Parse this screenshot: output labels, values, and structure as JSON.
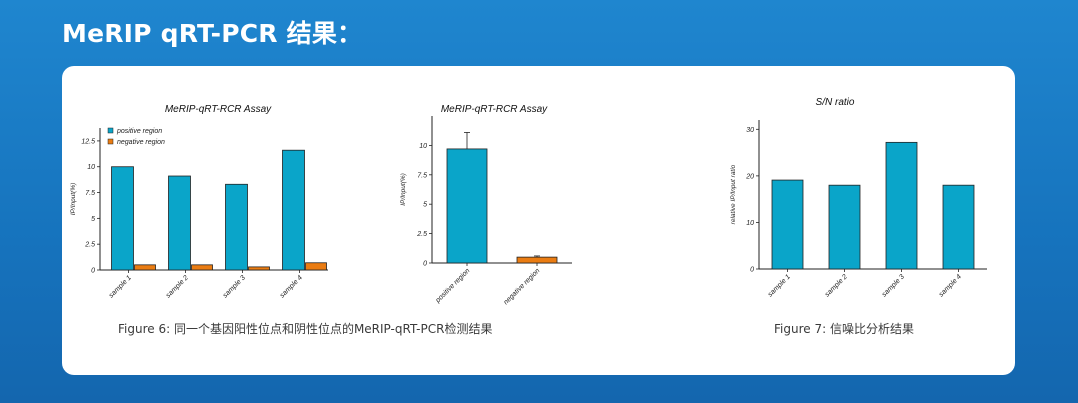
{
  "heading": "MeRIP qRT-PCR 结果：",
  "captions": {
    "fig6": "Figure 6: 同一个基因阳性位点和阴性位点的MeRIP-qRT-PCR检测结果",
    "fig7": "Figure 7: 信噪比分析结果"
  },
  "colors": {
    "cyan": "#0aa5c9",
    "orange": "#ea7c12"
  },
  "chart_data": [
    {
      "type": "bar",
      "title": "MeRIP-qRT-RCR Assay",
      "ylabel": "IP/Input(%)",
      "categories": [
        "sample 1",
        "sample 2",
        "sample 3",
        "sample 4"
      ],
      "series": [
        {
          "name": "positive region",
          "color": "#0aa5c9",
          "values": [
            10.0,
            9.1,
            8.3,
            11.6
          ]
        },
        {
          "name": "negative region",
          "color": "#ea7c12",
          "values": [
            0.5,
            0.5,
            0.3,
            0.7
          ]
        }
      ],
      "ylim": [
        0,
        13.75
      ],
      "yticks": [
        0,
        2.5,
        5,
        7.5,
        10,
        12.5
      ],
      "ytick_labels": [
        "0",
        "2.5",
        "5",
        "7.5",
        "10",
        "12.5"
      ],
      "legend": "top-left"
    },
    {
      "type": "bar",
      "title": "MeRIP-qRT-RCR Assay",
      "ylabel": "IP/Input(%)",
      "categories": [
        "positive region",
        "negative region"
      ],
      "values": [
        9.7,
        0.5
      ],
      "error": [
        1.4,
        0.1
      ],
      "colors": [
        "#0aa5c9",
        "#ea7c12"
      ],
      "ylim": [
        0,
        12.5
      ],
      "yticks": [
        0,
        2.5,
        5,
        7.5,
        10
      ],
      "ytick_labels": [
        "0",
        "2.5",
        "5",
        "7.5",
        "10"
      ]
    },
    {
      "type": "bar",
      "title": "S/N ratio",
      "ylabel": "relative IP/Input ratio",
      "categories": [
        "sample 1",
        "sample 2",
        "sample 3",
        "sample 4"
      ],
      "values": [
        19.1,
        18.0,
        27.2,
        18.0
      ],
      "colors": [
        "#0aa5c9",
        "#0aa5c9",
        "#0aa5c9",
        "#0aa5c9"
      ],
      "ylim": [
        0,
        32
      ],
      "yticks": [
        0,
        10,
        20,
        30
      ],
      "ytick_labels": [
        "0",
        "10",
        "20",
        "30"
      ]
    }
  ]
}
